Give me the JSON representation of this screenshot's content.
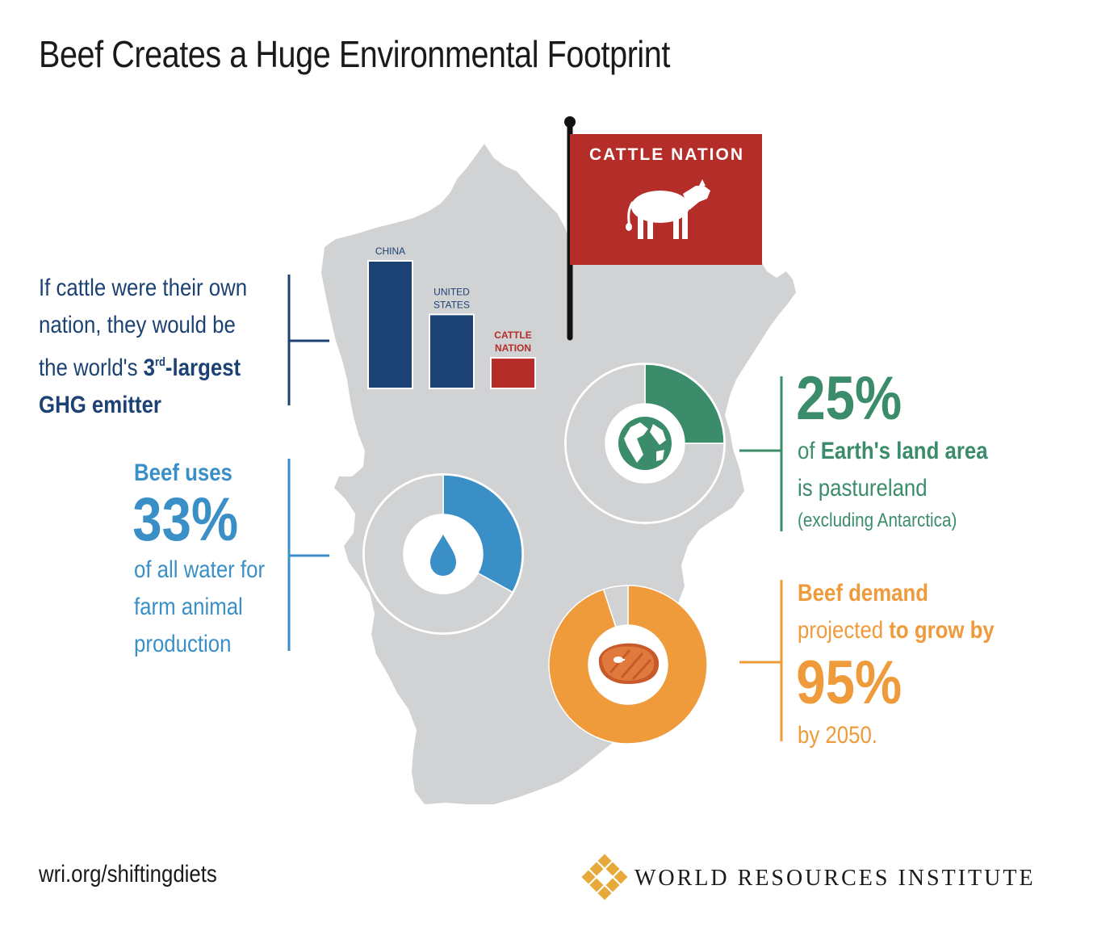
{
  "title": "Beef Creates a Huge Environmental Footprint",
  "colors": {
    "map": "#d1d2d4",
    "navy": "#1b4272",
    "red": "#b42d28",
    "green": "#3b8c6a",
    "blue": "#3a8fc6",
    "orange": "#ef9a3b",
    "gold": "#e8a93b"
  },
  "flag": {
    "label": "CATTLE NATION",
    "icon": "cow-icon"
  },
  "ghg": {
    "text1": "If cattle were their own",
    "text2": "nation, they would be",
    "text3": "the world's ",
    "rank_num": "3",
    "rank_sup": "rd",
    "rank_rest": "-largest",
    "text4": "GHG emitter"
  },
  "water": {
    "lead": "Beef uses",
    "value": "33%",
    "line1": "of all water for",
    "line2": "farm animal",
    "line3": "production",
    "icon": "water-drop-icon"
  },
  "land": {
    "value": "25%",
    "pre": "of ",
    "bold": "Earth's land area",
    "line2": "is pastureland",
    "note": "(excluding Antarctica)",
    "icon": "globe-icon"
  },
  "beef": {
    "lead": "Beef demand",
    "pre": "projected ",
    "bold": "to grow by",
    "value": "95%",
    "tail": "by 2050.",
    "icon": "steak-icon"
  },
  "chart_data": [
    {
      "type": "bar",
      "categories": [
        "CHINA",
        "UNITED STATES",
        "CATTLE NATION"
      ],
      "category_lines": [
        [
          "CHINA"
        ],
        [
          "UNITED",
          "STATES"
        ],
        [
          "CATTLE",
          "NATION"
        ]
      ],
      "values": [
        100,
        58,
        24
      ],
      "colors": [
        "#1b4272",
        "#1b4272",
        "#b42d28"
      ],
      "ylim": [
        0,
        100
      ]
    },
    {
      "type": "pie",
      "label": "25%",
      "values": [
        25,
        75
      ],
      "colors": [
        "#3b8c6a",
        "#d1d2d4"
      ]
    },
    {
      "type": "pie",
      "label": "33%",
      "values": [
        33,
        67
      ],
      "colors": [
        "#3a8fc6",
        "#d1d2d4"
      ]
    },
    {
      "type": "pie",
      "label": "95%",
      "values": [
        95,
        5
      ],
      "colors": [
        "#ef9a3b",
        "#d1d2d4"
      ]
    }
  ],
  "footer": {
    "url": "wri.org/shiftingdiets",
    "org": "WORLD RESOURCES INSTITUTE",
    "logo_icon": "wri-logo-icon"
  }
}
